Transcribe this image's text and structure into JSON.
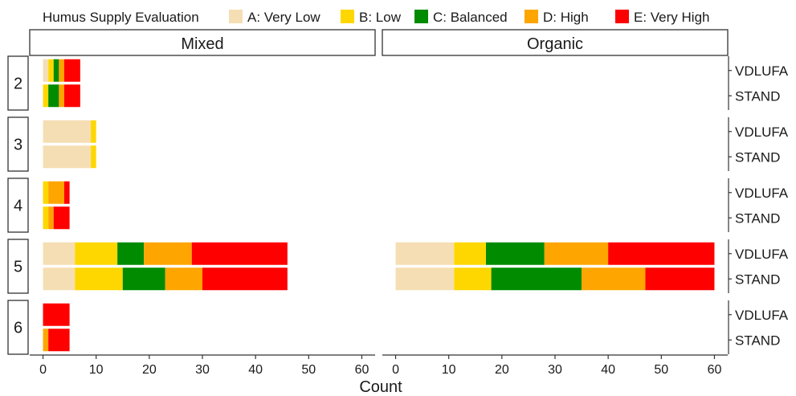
{
  "chart_data": {
    "type": "bar",
    "orientation": "horizontal",
    "stacked": true,
    "legend": {
      "title": "Humus Supply Evaluation",
      "position": "top",
      "entries": [
        {
          "label": "A: Very Low",
          "color": "#F5DEB3"
        },
        {
          "label": "B: Low",
          "color": "#FFD700"
        },
        {
          "label": "C: Balanced",
          "color": "#008B00"
        },
        {
          "label": "D: High",
          "color": "#FFA500"
        },
        {
          "label": "E: Very High",
          "color": "#FF0000"
        }
      ]
    },
    "xlabel": "Count",
    "xlim": [
      -2.5,
      62.5
    ],
    "xticks": [
      0,
      10,
      20,
      30,
      40,
      50,
      60
    ],
    "panels": [
      {
        "name": "Mixed",
        "groups": [
          {
            "facet": "2",
            "bars": [
              {
                "label": "VDLUFA",
                "values": [
                  1,
                  1,
                  1,
                  1,
                  3
                ]
              },
              {
                "label": "STAND",
                "values": [
                  0,
                  1,
                  2,
                  1,
                  3
                ]
              }
            ]
          },
          {
            "facet": "3",
            "bars": [
              {
                "label": "VDLUFA",
                "values": [
                  9,
                  1,
                  0,
                  0,
                  0
                ]
              },
              {
                "label": "STAND",
                "values": [
                  9,
                  1,
                  0,
                  0,
                  0
                ]
              }
            ]
          },
          {
            "facet": "4",
            "bars": [
              {
                "label": "VDLUFA",
                "values": [
                  0,
                  1,
                  0,
                  3,
                  1
                ]
              },
              {
                "label": "STAND",
                "values": [
                  0,
                  1,
                  0,
                  1,
                  3
                ]
              }
            ]
          },
          {
            "facet": "5",
            "bars": [
              {
                "label": "VDLUFA",
                "values": [
                  6,
                  8,
                  5,
                  9,
                  18
                ]
              },
              {
                "label": "STAND",
                "values": [
                  6,
                  9,
                  8,
                  7,
                  16
                ]
              }
            ]
          },
          {
            "facet": "6",
            "bars": [
              {
                "label": "VDLUFA",
                "values": [
                  0,
                  0,
                  0,
                  0,
                  5
                ]
              },
              {
                "label": "STAND",
                "values": [
                  0,
                  0,
                  0,
                  1,
                  4
                ]
              }
            ]
          }
        ]
      },
      {
        "name": "Organic",
        "groups": [
          {
            "facet": "2",
            "bars": [
              {
                "label": "VDLUFA",
                "values": [
                  0,
                  0,
                  0,
                  0,
                  0
                ]
              },
              {
                "label": "STAND",
                "values": [
                  0,
                  0,
                  0,
                  0,
                  0
                ]
              }
            ]
          },
          {
            "facet": "3",
            "bars": [
              {
                "label": "VDLUFA",
                "values": [
                  0,
                  0,
                  0,
                  0,
                  0
                ]
              },
              {
                "label": "STAND",
                "values": [
                  0,
                  0,
                  0,
                  0,
                  0
                ]
              }
            ]
          },
          {
            "facet": "4",
            "bars": [
              {
                "label": "VDLUFA",
                "values": [
                  0,
                  0,
                  0,
                  0,
                  0
                ]
              },
              {
                "label": "STAND",
                "values": [
                  0,
                  0,
                  0,
                  0,
                  0
                ]
              }
            ]
          },
          {
            "facet": "5",
            "bars": [
              {
                "label": "VDLUFA",
                "values": [
                  11,
                  6,
                  11,
                  12,
                  20
                ]
              },
              {
                "label": "STAND",
                "values": [
                  11,
                  7,
                  17,
                  12,
                  13
                ]
              }
            ]
          },
          {
            "facet": "6",
            "bars": [
              {
                "label": "VDLUFA",
                "values": [
                  0,
                  0,
                  0,
                  0,
                  0
                ]
              },
              {
                "label": "STAND",
                "values": [
                  0,
                  0,
                  0,
                  0,
                  0
                ]
              }
            ]
          }
        ]
      }
    ]
  }
}
